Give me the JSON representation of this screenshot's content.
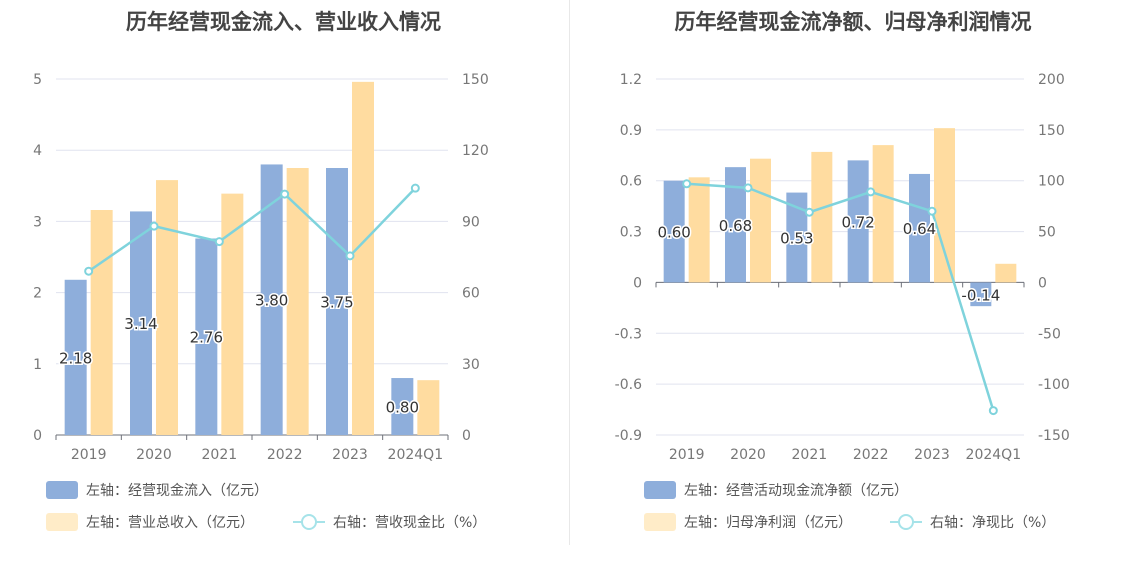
{
  "colors": {
    "bar1": "#8eaedb",
    "bar2": "#ffdca0",
    "line": "#7fd3dc",
    "legend_bar1": "#8eaedb",
    "legend_bar2": "#ffecc8",
    "legend_line": "#a6e3e9"
  },
  "chart_data": [
    {
      "type": "bar",
      "title": "历年经营现金流入、营业收入情况",
      "categories": [
        "2019",
        "2020",
        "2021",
        "2022",
        "2023",
        "2024Q1"
      ],
      "series": [
        {
          "name": "左轴：经营现金流入（亿元）",
          "axis": "left",
          "type": "bar",
          "values": [
            2.18,
            3.14,
            2.76,
            3.8,
            3.75,
            0.8
          ],
          "labels": [
            "2.18",
            "3.14",
            "2.76",
            "3.80",
            "3.75",
            "0.80"
          ]
        },
        {
          "name": "左轴：营业总收入（亿元）",
          "axis": "left",
          "type": "bar",
          "values": [
            3.16,
            3.58,
            3.39,
            3.75,
            4.96,
            0.77
          ]
        },
        {
          "name": "右轴：营收现金比（%）",
          "axis": "right",
          "type": "line",
          "values": [
            69,
            88,
            81.5,
            101.5,
            75.5,
            104
          ]
        }
      ],
      "left_axis": {
        "ylim": [
          0,
          5
        ],
        "ticks": [
          "0",
          "1",
          "2",
          "3",
          "4",
          "5"
        ]
      },
      "right_axis": {
        "ylim": [
          0,
          150
        ],
        "ticks": [
          "0",
          "30",
          "60",
          "90",
          "120",
          "150"
        ]
      },
      "grid": true,
      "legend": "bottom-left"
    },
    {
      "type": "bar",
      "title": "历年经营现金流净额、归母净利润情况",
      "categories": [
        "2019",
        "2020",
        "2021",
        "2022",
        "2023",
        "2024Q1"
      ],
      "series": [
        {
          "name": "左轴：经营活动现金流净额（亿元）",
          "axis": "left",
          "type": "bar",
          "values": [
            0.6,
            0.68,
            0.53,
            0.72,
            0.64,
            -0.14
          ],
          "labels": [
            "0.60",
            "0.68",
            "0.53",
            "0.72",
            "0.64",
            "-0.14"
          ]
        },
        {
          "name": "左轴：归母净利润（亿元）",
          "axis": "left",
          "type": "bar",
          "values": [
            0.62,
            0.73,
            0.77,
            0.81,
            0.91,
            0.11
          ]
        },
        {
          "name": "右轴：净现比（%）",
          "axis": "right",
          "type": "line",
          "values": [
            97,
            93,
            69,
            89,
            70,
            -126
          ]
        }
      ],
      "left_axis": {
        "ylim": [
          -0.9,
          1.2
        ],
        "ticks": [
          "-0.9",
          "-0.6",
          "-0.3",
          "0",
          "0.3",
          "0.6",
          "0.9",
          "1.2"
        ]
      },
      "right_axis": {
        "ylim": [
          -150,
          200
        ],
        "ticks": [
          "-150",
          "-100",
          "-50",
          "0",
          "50",
          "100",
          "150",
          "200"
        ]
      },
      "grid": true,
      "legend": "bottom-left"
    }
  ]
}
